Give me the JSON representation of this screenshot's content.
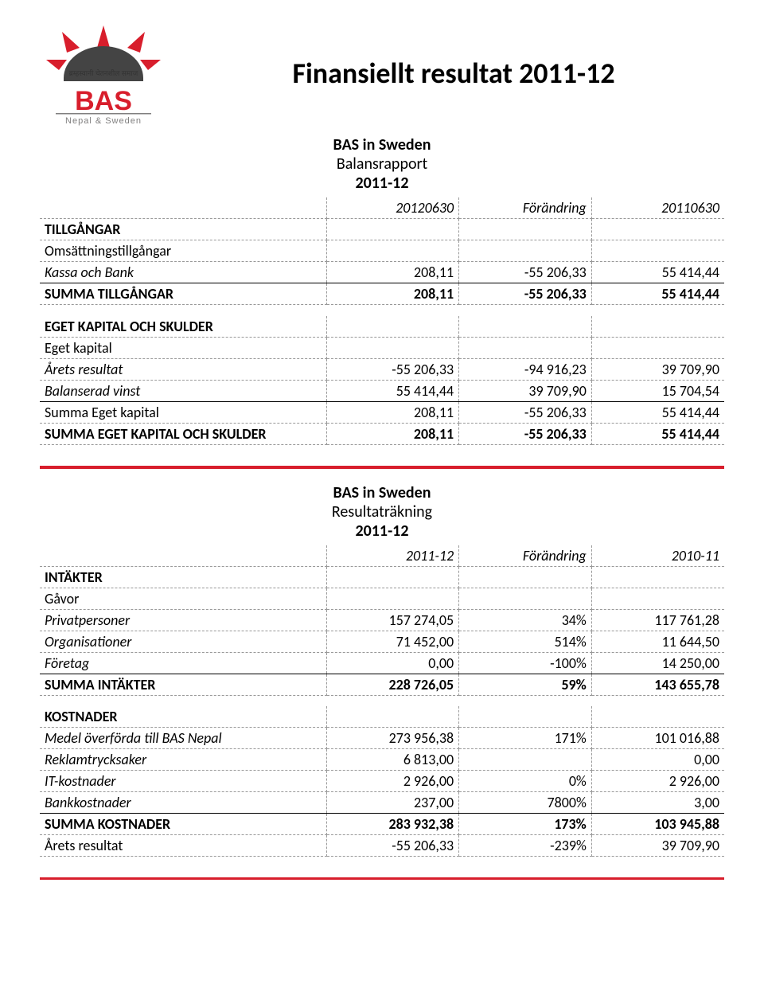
{
  "title": "Finansiellt resultat 2011-12",
  "logo": {
    "top_text": "ब्रम्हस्वानी चेतनशील समाज",
    "brand": "BAS",
    "sub": "Nepal & Sweden",
    "red": "#d81e2c",
    "gray": "#807f7f"
  },
  "balance": {
    "org": "BAS in Sweden",
    "report": "Balansrapport",
    "period": "2011-12",
    "headers": [
      "",
      "20120630",
      "Förändring",
      "20110630"
    ],
    "rows": [
      {
        "label": "TILLGÅNGAR",
        "type": "section"
      },
      {
        "label": "Omsättningstillgångar",
        "type": "sub"
      },
      {
        "label": "Kassa och Bank",
        "type": "italic-underline",
        "c1": "208,11",
        "c2": "-55 206,33",
        "c3": "55 414,44"
      },
      {
        "label": "SUMMA TILLGÅNGAR",
        "type": "bold",
        "c1": "208,11",
        "c2": "-55 206,33",
        "c3": "55 414,44"
      },
      {
        "type": "spacer"
      },
      {
        "label": "EGET KAPITAL OCH SKULDER",
        "type": "section"
      },
      {
        "label": "Eget kapital",
        "type": "sub"
      },
      {
        "label": "Årets resultat",
        "type": "italic",
        "c1": "-55 206,33",
        "c2": "-94 916,23",
        "c3": "39 709,90"
      },
      {
        "label": "Balanserad vinst",
        "type": "italic-underline",
        "c1": "55 414,44",
        "c2": "39 709,90",
        "c3": "15 704,54"
      },
      {
        "label": "Summa Eget kapital",
        "type": "plain",
        "c1": "208,11",
        "c2": "-55 206,33",
        "c3": "55 414,44"
      },
      {
        "label": "SUMMA EGET KAPITAL OCH SKULDER",
        "type": "bold",
        "c1": "208,11",
        "c2": "-55 206,33",
        "c3": "55 414,44"
      }
    ]
  },
  "income": {
    "org": "BAS in Sweden",
    "report": "Resultaträkning",
    "period": "2011-12",
    "headers": [
      "",
      "2011-12",
      "Förändring",
      "2010-11"
    ],
    "rows": [
      {
        "label": "INTÄKTER",
        "type": "section"
      },
      {
        "label": "Gåvor",
        "type": "sub"
      },
      {
        "label": "Privatpersoner",
        "type": "italic",
        "c1": "157 274,05",
        "c2": "34%",
        "c3": "117 761,28"
      },
      {
        "label": "Organisationer",
        "type": "italic",
        "c1": "71 452,00",
        "c2": "514%",
        "c3": "11 644,50"
      },
      {
        "label": "Företag",
        "type": "italic-underline",
        "c1": "0,00",
        "c2": "-100%",
        "c3": "14 250,00"
      },
      {
        "label": "SUMMA INTÄKTER",
        "type": "bold",
        "c1": "228 726,05",
        "c2": "59%",
        "c3": "143 655,78"
      },
      {
        "type": "spacer-dashed"
      },
      {
        "label": "KOSTNADER",
        "type": "section"
      },
      {
        "label": "Medel överförda till BAS Nepal",
        "type": "italic",
        "c1": "273 956,38",
        "c2": "171%",
        "c3": "101 016,88"
      },
      {
        "label": "Reklamtrycksaker",
        "type": "italic",
        "c1": "6 813,00",
        "c2": "",
        "c3": "0,00"
      },
      {
        "label": "IT-kostnader",
        "type": "italic",
        "c1": "2 926,00",
        "c2": "0%",
        "c3": "2 926,00"
      },
      {
        "label": "Bankkostnader",
        "type": "italic-underline",
        "c1": "237,00",
        "c2": "7800%",
        "c3": "3,00"
      },
      {
        "label": "SUMMA KOSTNADER",
        "type": "bold",
        "c1": "283 932,38",
        "c2": "173%",
        "c3": "103 945,88"
      },
      {
        "label": "Årets resultat",
        "type": "plain",
        "c1": "-55 206,33",
        "c2": "-239%",
        "c3": "39 709,90"
      }
    ]
  }
}
